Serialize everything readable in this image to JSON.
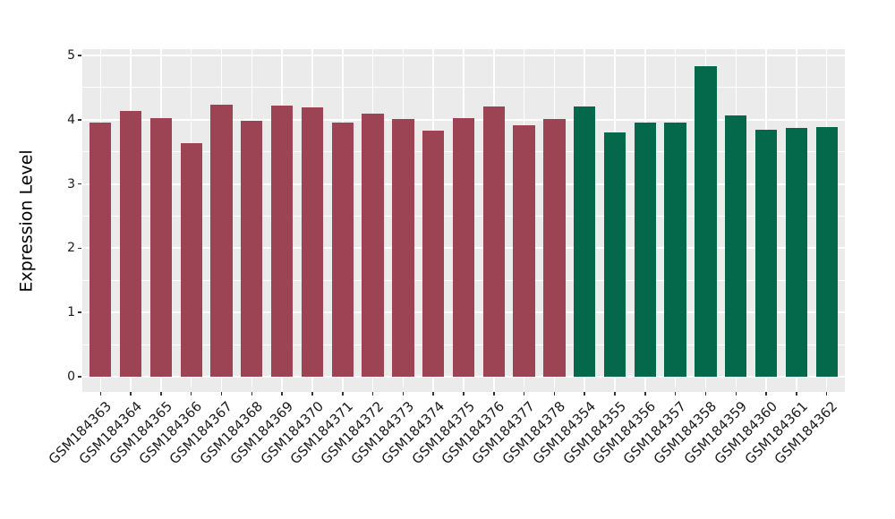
{
  "chart_data": {
    "type": "bar",
    "title": "",
    "xlabel": "",
    "ylabel": "Expression Level",
    "ylim": [
      0,
      5
    ],
    "yticks": [
      0,
      1,
      2,
      3,
      4,
      5
    ],
    "minor_tick_step": 0.5,
    "grid": "major and minor horizontal white gridlines plus vertical white gridlines at each category, on gray panel",
    "legend": "none",
    "panel_bg_color": "#EBEBEB",
    "gridline_color": "#FFFFFF",
    "categories": [
      "GSM184363",
      "GSM184364",
      "GSM184365",
      "GSM184366",
      "GSM184367",
      "GSM184368",
      "GSM184369",
      "GSM184370",
      "GSM184371",
      "GSM184372",
      "GSM184373",
      "GSM184374",
      "GSM184375",
      "GSM184376",
      "GSM184377",
      "GSM184378",
      "GSM184354",
      "GSM184355",
      "GSM184356",
      "GSM184357",
      "GSM184358",
      "GSM184359",
      "GSM184360",
      "GSM184361",
      "GSM184362"
    ],
    "values": [
      3.96,
      4.13,
      4.02,
      3.63,
      4.23,
      3.99,
      4.22,
      4.19,
      3.96,
      4.1,
      4.01,
      3.83,
      4.03,
      4.2,
      3.92,
      4.01,
      4.21,
      3.8,
      3.95,
      3.95,
      4.83,
      4.06,
      3.84,
      3.87,
      3.89
    ],
    "groups": [
      0,
      0,
      0,
      0,
      0,
      0,
      0,
      0,
      0,
      0,
      0,
      0,
      0,
      0,
      0,
      0,
      1,
      1,
      1,
      1,
      1,
      1,
      1,
      1,
      1
    ],
    "series": [
      {
        "name": "GSM184363-GSM184378",
        "color": "#9C4453"
      },
      {
        "name": "GSM184354-GSM184362",
        "color": "#04684A"
      }
    ]
  }
}
